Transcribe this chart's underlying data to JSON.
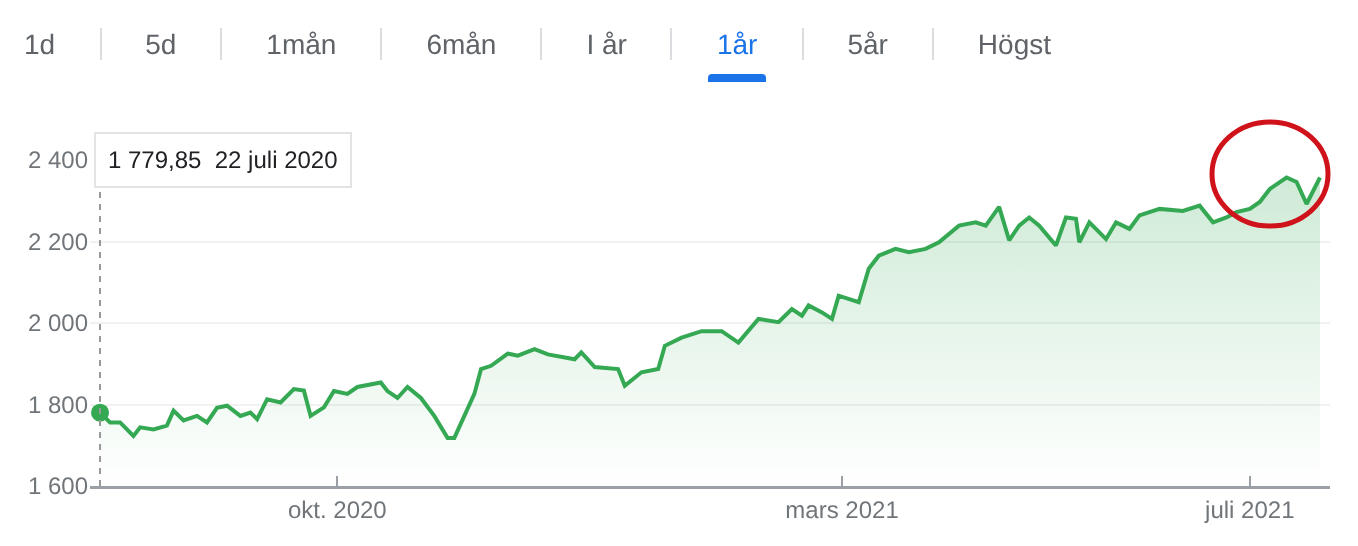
{
  "chart_data": {
    "type": "area",
    "annotations": [
      "1d",
      "5d",
      "1mån",
      "6mån",
      "I år",
      "1år",
      "5år",
      "Högst"
    ],
    "ref_lines": [
      {
        "axis": "x",
        "value": "2020-07-22",
        "label": "1 779,85  22 juli 2020",
        "color": "#999999",
        "line_style": "dotted"
      }
    ],
    "x": [
      "2020-07-22",
      "2020-07-25",
      "2020-07-28",
      "2020-08-01",
      "2020-08-03",
      "2020-08-07",
      "2020-08-11",
      "2020-08-13",
      "2020-08-16",
      "2020-08-20",
      "2020-08-23",
      "2020-08-26",
      "2020-08-29",
      "2020-09-02",
      "2020-09-05",
      "2020-09-07",
      "2020-09-10",
      "2020-09-14",
      "2020-09-18",
      "2020-09-21",
      "2020-09-23",
      "2020-09-27",
      "2020-09-30",
      "2020-10-04",
      "2020-10-07",
      "2020-10-14",
      "2020-10-16",
      "2020-10-19",
      "2020-10-22",
      "2020-10-26",
      "2020-10-30",
      "2020-11-03",
      "2020-11-05",
      "2020-11-11",
      "2020-11-13",
      "2020-11-16",
      "2020-11-21",
      "2020-11-24",
      "2020-11-29",
      "2020-12-03",
      "2020-12-11",
      "2020-12-13",
      "2020-12-17",
      "2020-12-24",
      "2020-12-26",
      "2020-12-31",
      "2021-01-05",
      "2021-01-07",
      "2021-01-12",
      "2021-01-18",
      "2021-01-24",
      "2021-01-29",
      "2021-02-04",
      "2021-02-10",
      "2021-02-14",
      "2021-02-17",
      "2021-02-19",
      "2021-02-23",
      "2021-02-26",
      "2021-02-28",
      "2021-03-06",
      "2021-03-09",
      "2021-03-12",
      "2021-03-17",
      "2021-03-21",
      "2021-03-26",
      "2021-03-30",
      "2021-04-05",
      "2021-04-10",
      "2021-04-13",
      "2021-04-17",
      "2021-04-20",
      "2021-04-23",
      "2021-04-26",
      "2021-04-29",
      "2021-05-04",
      "2021-05-07",
      "2021-05-10",
      "2021-05-11",
      "2021-05-14",
      "2021-05-19",
      "2021-05-22",
      "2021-05-26",
      "2021-05-29",
      "2021-06-04",
      "2021-06-11",
      "2021-06-16",
      "2021-06-20",
      "2021-06-24",
      "2021-06-27",
      "2021-07-01",
      "2021-07-04",
      "2021-07-07",
      "2021-07-12",
      "2021-07-15",
      "2021-07-18",
      "2021-07-22"
    ],
    "series": [
      {
        "color": "#34a853",
        "values": [
          1780,
          1756,
          1756,
          1723,
          1744,
          1739,
          1748,
          1785,
          1761,
          1772,
          1756,
          1792,
          1797,
          1772,
          1780,
          1764,
          1813,
          1805,
          1838,
          1834,
          1772,
          1793,
          1833,
          1826,
          1843,
          1854,
          1833,
          1816,
          1843,
          1816,
          1772,
          1718,
          1718,
          1826,
          1887,
          1895,
          1925,
          1920,
          1936,
          1923,
          1911,
          1928,
          1892,
          1887,
          1846,
          1879,
          1887,
          1944,
          1964,
          1980,
          1980,
          1952,
          2010,
          2002,
          2034,
          2018,
          2043,
          2026,
          2010,
          2067,
          2051,
          2133,
          2165,
          2182,
          2174,
          2182,
          2198,
          2239,
          2247,
          2239,
          2285,
          2203,
          2239,
          2259,
          2239,
          2190,
          2259,
          2256,
          2198,
          2247,
          2206,
          2247,
          2231,
          2264,
          2280,
          2275,
          2288,
          2247,
          2259,
          2272,
          2280,
          2297,
          2329,
          2357,
          2346,
          2292,
          2357
        ]
      }
    ],
    "xlim": [
      "2020-07-19",
      "2021-07-25"
    ],
    "xticks": [
      {
        "value": "2020-10-01",
        "label": "okt. 2020"
      },
      {
        "value": "2021-03-01",
        "label": "mars 2021"
      },
      {
        "value": "2021-07-01",
        "label": "juli 2021"
      }
    ],
    "ylim": [
      1600,
      2400
    ],
    "yticks": [
      {
        "value": 1600,
        "label": "1 600"
      },
      {
        "value": 1800,
        "label": "1 800"
      },
      {
        "value": 2000,
        "label": "2 000"
      },
      {
        "value": 2200,
        "label": "2 200"
      },
      {
        "value": 2400,
        "label": "2 400"
      }
    ],
    "grid": "y"
  }
}
